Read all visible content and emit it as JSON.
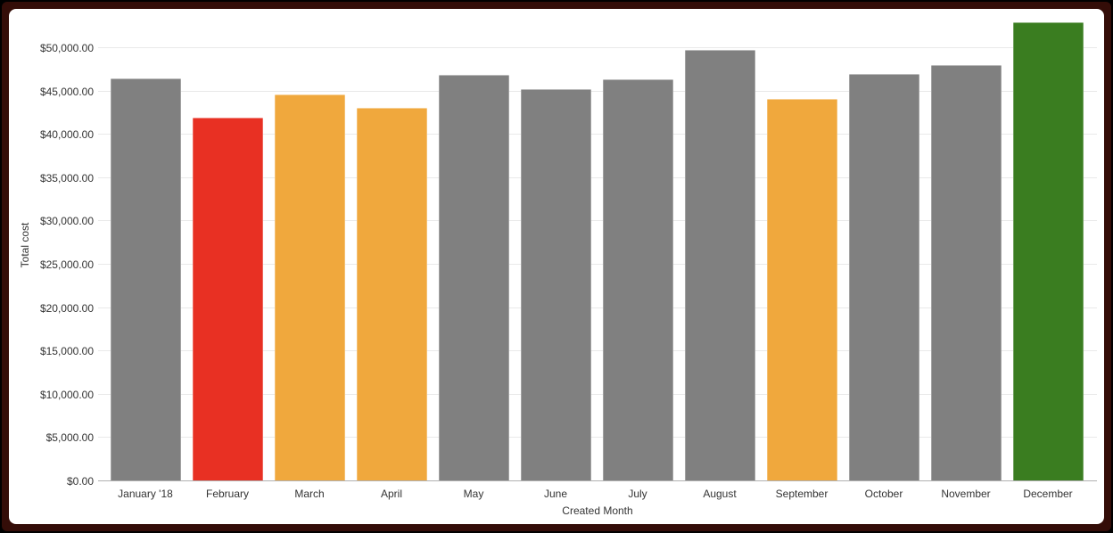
{
  "chart_data": {
    "type": "bar",
    "title": "",
    "xlabel": "Created Month",
    "ylabel": "Total cost",
    "categories": [
      "January '18",
      "February",
      "March",
      "April",
      "May",
      "June",
      "July",
      "August",
      "September",
      "October",
      "November",
      "December"
    ],
    "values": [
      46500,
      42000,
      44700,
      43100,
      46900,
      45300,
      46400,
      49800,
      44100,
      47000,
      48000,
      53000
    ],
    "bar_colors": [
      "#808080",
      "#e83023",
      "#f0a83d",
      "#f0a83d",
      "#808080",
      "#808080",
      "#808080",
      "#808080",
      "#f0a83d",
      "#808080",
      "#808080",
      "#3a7d20"
    ],
    "y_ticks": [
      {
        "value": 0,
        "label": "$0.00"
      },
      {
        "value": 5000,
        "label": "$5,000.00"
      },
      {
        "value": 10000,
        "label": "$10,000.00"
      },
      {
        "value": 15000,
        "label": "$15,000.00"
      },
      {
        "value": 20000,
        "label": "$20,000.00"
      },
      {
        "value": 25000,
        "label": "$25,000.00"
      },
      {
        "value": 30000,
        "label": "$30,000.00"
      },
      {
        "value": 35000,
        "label": "$35,000.00"
      },
      {
        "value": 40000,
        "label": "$40,000.00"
      },
      {
        "value": 45000,
        "label": "$45,000.00"
      },
      {
        "value": 50000,
        "label": "$50,000.00"
      }
    ],
    "ylim": [
      0,
      54500
    ],
    "grid": true,
    "legend": "none",
    "colors": {
      "default_bar": "#808080",
      "alert_bar": "#e83023",
      "warning_bar": "#f0a83d",
      "success_bar": "#3a7d20",
      "gridline": "#e9e9e9",
      "axis_line": "#b0b0b0",
      "label_text": "#333333",
      "frame": "#340d08",
      "background": "#ffffff"
    }
  }
}
